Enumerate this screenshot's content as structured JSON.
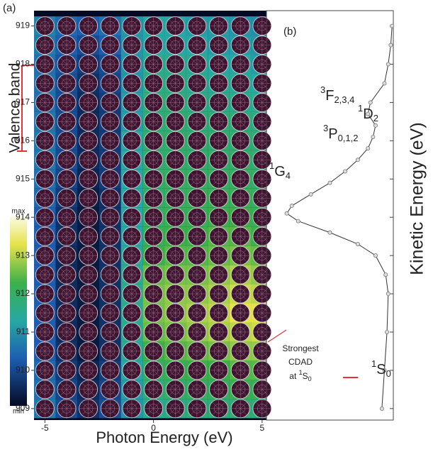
{
  "chart_data": [
    {
      "type": "heatmap",
      "panel_label": "(a)",
      "xlabel": "Photon Energy (eV)",
      "x": [
        -5,
        -4,
        -3,
        -2,
        -1,
        0,
        1,
        2,
        3,
        4,
        5
      ],
      "y": [
        919,
        918.5,
        918,
        917.5,
        917,
        916.5,
        916,
        915.5,
        915,
        914.5,
        914,
        913.5,
        913,
        912.5,
        912,
        911.5,
        911,
        910.5,
        910,
        909.5,
        909
      ],
      "z": [
        [
          0.35,
          0.28,
          0.25,
          0.3,
          0.4,
          0.45,
          0.45,
          0.42,
          0.42,
          0.4,
          0.38
        ],
        [
          0.33,
          0.25,
          0.2,
          0.25,
          0.4,
          0.45,
          0.45,
          0.45,
          0.42,
          0.42,
          0.4
        ],
        [
          0.3,
          0.22,
          0.15,
          0.2,
          0.4,
          0.5,
          0.5,
          0.48,
          0.45,
          0.45,
          0.42
        ],
        [
          0.3,
          0.2,
          0.12,
          0.18,
          0.4,
          0.52,
          0.52,
          0.5,
          0.48,
          0.48,
          0.45
        ],
        [
          0.3,
          0.2,
          0.1,
          0.15,
          0.42,
          0.55,
          0.55,
          0.52,
          0.52,
          0.5,
          0.5
        ],
        [
          0.32,
          0.2,
          0.1,
          0.15,
          0.42,
          0.55,
          0.56,
          0.55,
          0.55,
          0.55,
          0.52
        ],
        [
          0.32,
          0.2,
          0.1,
          0.15,
          0.45,
          0.56,
          0.58,
          0.56,
          0.56,
          0.56,
          0.55
        ],
        [
          0.32,
          0.2,
          0.1,
          0.15,
          0.45,
          0.56,
          0.58,
          0.58,
          0.58,
          0.58,
          0.56
        ],
        [
          0.3,
          0.18,
          0.08,
          0.15,
          0.45,
          0.58,
          0.6,
          0.6,
          0.6,
          0.6,
          0.58
        ],
        [
          0.28,
          0.15,
          0.06,
          0.12,
          0.45,
          0.58,
          0.6,
          0.62,
          0.62,
          0.62,
          0.6
        ],
        [
          0.25,
          0.12,
          0.05,
          0.12,
          0.45,
          0.6,
          0.62,
          0.62,
          0.65,
          0.65,
          0.62
        ],
        [
          0.25,
          0.12,
          0.05,
          0.12,
          0.45,
          0.62,
          0.65,
          0.65,
          0.68,
          0.68,
          0.65
        ],
        [
          0.25,
          0.1,
          0.05,
          0.12,
          0.48,
          0.65,
          0.68,
          0.68,
          0.7,
          0.72,
          0.7
        ],
        [
          0.25,
          0.1,
          0.05,
          0.12,
          0.5,
          0.7,
          0.72,
          0.72,
          0.75,
          0.78,
          0.75
        ],
        [
          0.25,
          0.1,
          0.05,
          0.12,
          0.5,
          0.72,
          0.75,
          0.75,
          0.78,
          0.82,
          0.8
        ],
        [
          0.25,
          0.1,
          0.05,
          0.12,
          0.5,
          0.72,
          0.75,
          0.78,
          0.8,
          0.85,
          0.85
        ],
        [
          0.25,
          0.1,
          0.05,
          0.12,
          0.5,
          0.7,
          0.72,
          0.75,
          0.78,
          0.8,
          0.82
        ],
        [
          0.25,
          0.12,
          0.05,
          0.12,
          0.48,
          0.65,
          0.68,
          0.7,
          0.72,
          0.75,
          0.75
        ],
        [
          0.28,
          0.15,
          0.08,
          0.15,
          0.45,
          0.6,
          0.62,
          0.65,
          0.65,
          0.68,
          0.68
        ],
        [
          0.3,
          0.18,
          0.1,
          0.18,
          0.42,
          0.55,
          0.58,
          0.6,
          0.6,
          0.62,
          0.62
        ],
        [
          0.32,
          0.2,
          0.12,
          0.2,
          0.4,
          0.5,
          0.52,
          0.55,
          0.55,
          0.55,
          0.55
        ]
      ],
      "xlim": [
        -5.5,
        5.2
      ],
      "xticks": [
        -5,
        0,
        5
      ],
      "ylim": [
        908.7,
        919.4
      ],
      "yticks": [
        909,
        910,
        911,
        912,
        913,
        914,
        915,
        916,
        917,
        918,
        919
      ],
      "clim": [
        0,
        1
      ],
      "colorbar_max_label": "max",
      "colorbar_min_label": "min",
      "annotation": "Valence band"
    },
    {
      "type": "line",
      "panel_label": "(b)",
      "ylabel": "Kinetic Energy (eV)",
      "x": [
        919,
        918.5,
        918,
        917.5,
        917,
        916.7,
        916.4,
        916.1,
        915.8,
        915.5,
        915.2,
        914.9,
        914.6,
        914.3,
        914.1,
        913.9,
        913.6,
        913.3,
        913,
        912.5,
        912,
        911,
        910,
        909
      ],
      "values": [
        0.99,
        0.98,
        0.96,
        0.93,
        0.82,
        0.8,
        0.86,
        0.84,
        0.8,
        0.72,
        0.62,
        0.5,
        0.35,
        0.2,
        0.16,
        0.25,
        0.5,
        0.72,
        0.86,
        0.94,
        0.96,
        0.95,
        0.93,
        0.91
      ],
      "xlim": [
        0,
        1
      ],
      "ylim": [
        908.7,
        919.4
      ],
      "yticks": [
        909,
        910,
        911,
        912,
        913,
        914,
        915,
        916,
        917,
        918,
        919
      ],
      "terms": [
        {
          "sup": "3",
          "base": "F",
          "sub": "2,3,4"
        },
        {
          "sup": "1",
          "base": "D",
          "sub": "2"
        },
        {
          "sup": "3",
          "base": "P",
          "sub": "0,1,2"
        },
        {
          "sup": "1",
          "base": "G",
          "sub": "4"
        },
        {
          "sup": "1",
          "base": "S",
          "sub": "0"
        }
      ],
      "note": [
        "Strongest",
        "CDAD",
        {
          "pre": "at ",
          "sup": "1",
          "base": "S",
          "sub": "0"
        }
      ]
    }
  ]
}
